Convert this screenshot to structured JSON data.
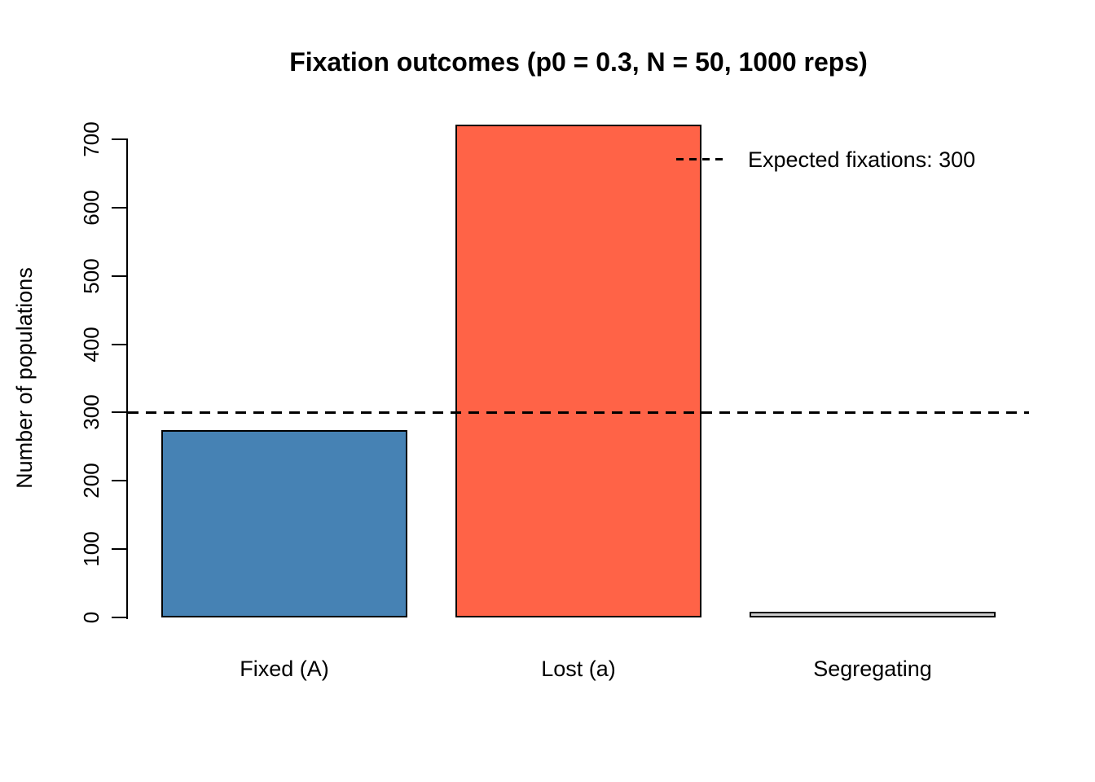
{
  "chart_data": {
    "type": "bar",
    "title": "Fixation outcomes (p0 = 0.3, N = 50, 1000 reps)",
    "xlabel": "",
    "ylabel": "Number of populations",
    "categories": [
      "Fixed (A)",
      "Lost (a)",
      "Segregating"
    ],
    "values": [
      273,
      720,
      7
    ],
    "bar_colors": [
      "#4682B4",
      "#FF6347",
      "#CCCCCC"
    ],
    "bar_border_color": "#000000",
    "axis_color": "#000000",
    "text_color": "#000000",
    "yticks": [
      0,
      100,
      200,
      300,
      400,
      500,
      600,
      700
    ],
    "ylim": [
      0,
      720
    ],
    "grid": false,
    "reference_line": {
      "value": 300,
      "style": "dashed",
      "color": "#000000"
    },
    "legend": {
      "position": "topright",
      "boxed": false,
      "entries": [
        {
          "label": "Expected fixations: 300",
          "line_style": "dashed",
          "line_color": "#000000"
        }
      ]
    }
  }
}
